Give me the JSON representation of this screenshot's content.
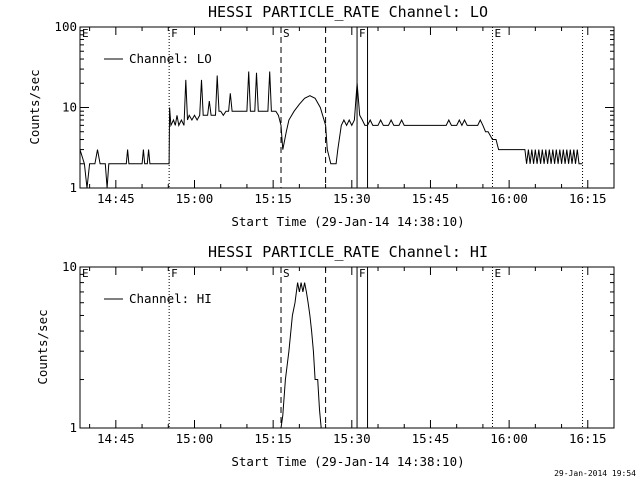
{
  "footer_date": "29-Jan-2014 19:54",
  "chart_data": [
    {
      "type": "line",
      "title": "HESSI PARTICLE_RATE Channel: LO",
      "xlabel": "Start Time (29-Jan-14 14:38:10)",
      "ylabel": "Counts/sec",
      "yscale": "log",
      "ylim": [
        1,
        100
      ],
      "yticks": [
        1,
        10,
        100
      ],
      "xlim": [
        "14:38:10",
        "16:20:00"
      ],
      "xticks": [
        "14:45",
        "15:00",
        "15:15",
        "15:30",
        "15:45",
        "16:00",
        "16:15"
      ],
      "legend": {
        "label": "Channel: LO",
        "placement": "top-left"
      },
      "grid": false,
      "markers": [
        {
          "label": "E",
          "time": "14:38:10",
          "style": "dotted"
        },
        {
          "label": "F",
          "time": "14:55:10",
          "style": "dotted"
        },
        {
          "label": "S",
          "time": "15:16:30",
          "style": "dashed"
        },
        {
          "label": "",
          "time": "15:25:00",
          "style": "dashed"
        },
        {
          "label": "F",
          "time": "15:31:00",
          "style": "solid"
        },
        {
          "label": "",
          "time": "15:33:00",
          "style": "solid"
        },
        {
          "label": "E",
          "time": "15:56:50",
          "style": "dotted"
        },
        {
          "label": "",
          "time": "16:14:00",
          "style": "dotted"
        }
      ],
      "series": [
        {
          "values": [
            [
              "14:38:10",
              3
            ],
            [
              "14:39:00",
              2
            ],
            [
              "14:39:30",
              1
            ],
            [
              "14:40:00",
              2
            ],
            [
              "14:41:00",
              2
            ],
            [
              "14:41:30",
              3
            ],
            [
              "14:42:00",
              2
            ],
            [
              "14:43:00",
              2
            ],
            [
              "14:43:20",
              1
            ],
            [
              "14:43:40",
              2
            ],
            [
              "14:47:00",
              2
            ],
            [
              "14:47:15",
              3
            ],
            [
              "14:47:30",
              2
            ],
            [
              "14:50:00",
              2
            ],
            [
              "14:50:15",
              3
            ],
            [
              "14:50:30",
              2
            ],
            [
              "14:51:00",
              2
            ],
            [
              "14:51:15",
              3
            ],
            [
              "14:51:30",
              2
            ],
            [
              "14:55:10",
              2
            ],
            [
              "14:55:15",
              10
            ],
            [
              "14:55:30",
              6
            ],
            [
              "14:56:00",
              7
            ],
            [
              "14:56:20",
              6
            ],
            [
              "14:56:40",
              8
            ],
            [
              "14:57:00",
              6
            ],
            [
              "14:57:30",
              7
            ],
            [
              "14:58:00",
              6
            ],
            [
              "14:58:20",
              22
            ],
            [
              "14:58:40",
              7
            ],
            [
              "14:59:00",
              8
            ],
            [
              "14:59:30",
              7
            ],
            [
              "15:00:00",
              8
            ],
            [
              "15:00:30",
              7
            ],
            [
              "15:01:00",
              8
            ],
            [
              "15:01:20",
              22
            ],
            [
              "15:01:40",
              8
            ],
            [
              "15:02:00",
              8
            ],
            [
              "15:02:30",
              8
            ],
            [
              "15:02:50",
              12
            ],
            [
              "15:03:10",
              8
            ],
            [
              "15:04:00",
              8
            ],
            [
              "15:04:20",
              25
            ],
            [
              "15:04:40",
              9
            ],
            [
              "15:05:00",
              9
            ],
            [
              "15:05:30",
              8
            ],
            [
              "15:06:00",
              9
            ],
            [
              "15:06:30",
              9
            ],
            [
              "15:06:50",
              15
            ],
            [
              "15:07:10",
              9
            ],
            [
              "15:08:00",
              9
            ],
            [
              "15:09:00",
              9
            ],
            [
              "15:10:00",
              9
            ],
            [
              "15:10:20",
              28
            ],
            [
              "15:10:40",
              9
            ],
            [
              "15:11:30",
              9
            ],
            [
              "15:11:50",
              27
            ],
            [
              "15:12:10",
              9
            ],
            [
              "15:13:00",
              9
            ],
            [
              "15:14:00",
              9
            ],
            [
              "15:14:20",
              28
            ],
            [
              "15:14:40",
              9
            ],
            [
              "15:15:30",
              9
            ],
            [
              "15:16:00",
              8
            ],
            [
              "15:16:30",
              6
            ],
            [
              "15:16:50",
              3
            ],
            [
              "15:17:30",
              5
            ],
            [
              "15:18:00",
              7
            ],
            [
              "15:19:00",
              9
            ],
            [
              "15:20:00",
              11
            ],
            [
              "15:21:00",
              13
            ],
            [
              "15:22:00",
              14
            ],
            [
              "15:23:00",
              13
            ],
            [
              "15:24:00",
              10
            ],
            [
              "15:25:00",
              6
            ],
            [
              "15:25:20",
              3
            ],
            [
              "15:26:00",
              2
            ],
            [
              "15:27:00",
              2
            ],
            [
              "15:27:20",
              3
            ],
            [
              "15:28:00",
              6
            ],
            [
              "15:28:30",
              7
            ],
            [
              "15:29:00",
              6
            ],
            [
              "15:29:30",
              7
            ],
            [
              "15:30:00",
              6
            ],
            [
              "15:30:30",
              7
            ],
            [
              "15:31:00",
              20
            ],
            [
              "15:31:30",
              8
            ],
            [
              "15:32:00",
              7
            ],
            [
              "15:32:30",
              6
            ],
            [
              "15:33:00",
              6
            ],
            [
              "15:33:30",
              7
            ],
            [
              "15:34:00",
              6
            ],
            [
              "15:35:00",
              6
            ],
            [
              "15:35:30",
              7
            ],
            [
              "15:36:00",
              6
            ],
            [
              "15:37:00",
              6
            ],
            [
              "15:37:30",
              7
            ],
            [
              "15:38:00",
              6
            ],
            [
              "15:39:00",
              6
            ],
            [
              "15:39:30",
              7
            ],
            [
              "15:40:00",
              6
            ],
            [
              "15:41:00",
              6
            ],
            [
              "15:42:00",
              6
            ],
            [
              "15:43:00",
              6
            ],
            [
              "15:44:00",
              6
            ],
            [
              "15:45:00",
              6
            ],
            [
              "15:46:00",
              6
            ],
            [
              "15:47:00",
              6
            ],
            [
              "15:48:00",
              6
            ],
            [
              "15:48:30",
              7
            ],
            [
              "15:49:00",
              6
            ],
            [
              "15:50:00",
              6
            ],
            [
              "15:50:30",
              7
            ],
            [
              "15:51:00",
              6
            ],
            [
              "15:51:30",
              7
            ],
            [
              "15:52:00",
              6
            ],
            [
              "15:53:00",
              6
            ],
            [
              "15:54:00",
              6
            ],
            [
              "15:54:30",
              7
            ],
            [
              "15:55:00",
              6
            ],
            [
              "15:55:30",
              5
            ],
            [
              "15:56:00",
              5
            ],
            [
              "15:56:50",
              4
            ],
            [
              "15:57:30",
              4
            ],
            [
              "15:58:00",
              3
            ],
            [
              "16:00:00",
              3
            ],
            [
              "16:02:00",
              3
            ],
            [
              "16:03:00",
              3
            ],
            [
              "16:03:20",
              2
            ],
            [
              "16:03:40",
              3
            ],
            [
              "16:04:00",
              2
            ],
            [
              "16:04:20",
              3
            ],
            [
              "16:04:40",
              2
            ],
            [
              "16:05:00",
              3
            ],
            [
              "16:05:20",
              2
            ],
            [
              "16:05:40",
              3
            ],
            [
              "16:06:00",
              2
            ],
            [
              "16:06:20",
              3
            ],
            [
              "16:06:40",
              2
            ],
            [
              "16:07:00",
              3
            ],
            [
              "16:07:20",
              2
            ],
            [
              "16:07:40",
              3
            ],
            [
              "16:08:00",
              2
            ],
            [
              "16:08:20",
              3
            ],
            [
              "16:08:40",
              2
            ],
            [
              "16:09:00",
              3
            ],
            [
              "16:09:20",
              2
            ],
            [
              "16:09:40",
              3
            ],
            [
              "16:10:00",
              2
            ],
            [
              "16:10:20",
              3
            ],
            [
              "16:10:40",
              2
            ],
            [
              "16:11:00",
              3
            ],
            [
              "16:11:20",
              2
            ],
            [
              "16:11:40",
              3
            ],
            [
              "16:12:00",
              2
            ],
            [
              "16:12:20",
              3
            ],
            [
              "16:12:40",
              2
            ],
            [
              "16:13:00",
              3
            ],
            [
              "16:13:20",
              2
            ],
            [
              "16:14:00",
              2
            ]
          ]
        }
      ]
    },
    {
      "type": "line",
      "title": "HESSI PARTICLE_RATE Channel: HI",
      "xlabel": "Start Time (29-Jan-14 14:38:10)",
      "ylabel": "Counts/sec",
      "yscale": "log",
      "ylim": [
        1,
        10
      ],
      "yticks": [
        1,
        10
      ],
      "xlim": [
        "14:38:10",
        "16:20:00"
      ],
      "xticks": [
        "14:45",
        "15:00",
        "15:15",
        "15:30",
        "15:45",
        "16:00",
        "16:15"
      ],
      "legend": {
        "label": "Channel: HI",
        "placement": "top-left"
      },
      "grid": false,
      "markers": [
        {
          "label": "E",
          "time": "14:38:10",
          "style": "dotted"
        },
        {
          "label": "F",
          "time": "14:55:10",
          "style": "dotted"
        },
        {
          "label": "S",
          "time": "15:16:30",
          "style": "dashed"
        },
        {
          "label": "",
          "time": "15:25:00",
          "style": "dashed"
        },
        {
          "label": "F",
          "time": "15:31:00",
          "style": "solid"
        },
        {
          "label": "",
          "time": "15:33:00",
          "style": "solid"
        },
        {
          "label": "E",
          "time": "15:56:50",
          "style": "dotted"
        },
        {
          "label": "",
          "time": "16:14:00",
          "style": "dotted"
        }
      ],
      "series": [
        {
          "values": [
            [
              "15:16:30",
              1
            ],
            [
              "15:16:50",
              1.2
            ],
            [
              "15:17:20",
              2
            ],
            [
              "15:18:00",
              3
            ],
            [
              "15:18:40",
              5
            ],
            [
              "15:19:10",
              6
            ],
            [
              "15:19:40",
              8
            ],
            [
              "15:20:00",
              7
            ],
            [
              "15:20:20",
              8
            ],
            [
              "15:20:40",
              7
            ],
            [
              "15:21:00",
              8
            ],
            [
              "15:21:20",
              7
            ],
            [
              "15:21:40",
              6
            ],
            [
              "15:22:00",
              5
            ],
            [
              "15:22:20",
              4
            ],
            [
              "15:22:40",
              3
            ],
            [
              "15:23:00",
              2
            ],
            [
              "15:23:30",
              2
            ],
            [
              "15:23:50",
              1.3
            ],
            [
              "15:24:10",
              1
            ]
          ]
        }
      ]
    }
  ]
}
